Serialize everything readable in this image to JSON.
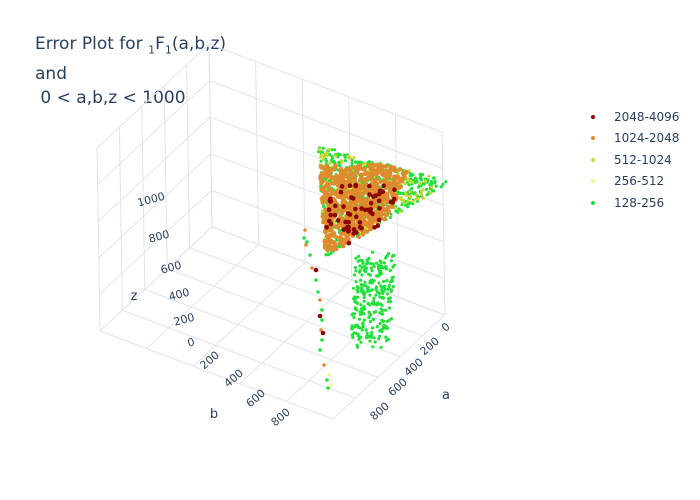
{
  "title": {
    "prefix": "Error Plot for ",
    "sub1": "1",
    "func": "F",
    "sub2": "1",
    "args": "(a,b,z)",
    "line2": "and",
    "line3": " 0 < a,b,z < 1000"
  },
  "chart_data": {
    "type": "scatter3d",
    "axes": {
      "a": {
        "label": "a",
        "ticks": [
          "0",
          "200",
          "400",
          "600",
          "800"
        ],
        "range": [
          0,
          1000
        ]
      },
      "b": {
        "label": "b",
        "ticks": [
          "200",
          "400",
          "600",
          "800"
        ],
        "range": [
          0,
          1000
        ]
      },
      "z": {
        "label": "z",
        "ticks": [
          "0",
          "200",
          "400",
          "600",
          "800",
          "1000"
        ],
        "range": [
          0,
          1000
        ]
      }
    },
    "grid": true,
    "legend_placement": "top-right",
    "series": [
      {
        "name": "2048-4096",
        "color": "#8b0000"
      },
      {
        "name": "1024-2048",
        "color": "#e08a2e"
      },
      {
        "name": "512-1024",
        "color": "#c7d92b"
      },
      {
        "name": "256-512",
        "color": "#f2f290"
      },
      {
        "name": "128-256",
        "color": "#22e03a"
      }
    ]
  }
}
